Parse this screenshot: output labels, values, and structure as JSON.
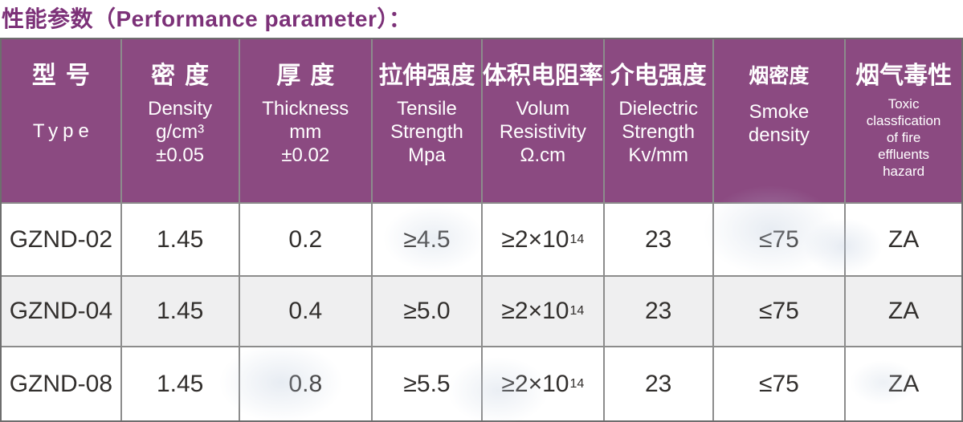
{
  "title": "性能参数（Performance parameter）：",
  "colors": {
    "title_text": "#7c3178",
    "header_background": "#8b4a81",
    "header_text": "#ffffff",
    "grid_line": "#8c8c8c",
    "outer_border": "#6e6e6e",
    "alt_row_background": "#efeff0",
    "cell_text": "#322f2d"
  },
  "table": {
    "columns": [
      {
        "zh": "型号",
        "en": "Type"
      },
      {
        "zh": "密度",
        "en": "Density\ng/cm³\n±0.05"
      },
      {
        "zh": "厚度",
        "en": "Thickness\nmm\n±0.02"
      },
      {
        "zh": "拉伸强度",
        "en": "Tensile\nStrength\nMpa"
      },
      {
        "zh": "体积电阻率",
        "en": "Volum\nResistivity\nΩ.cm"
      },
      {
        "zh": "介电强度",
        "en": "Dielectric\nStrength\nKv/mm"
      },
      {
        "zh": "烟密度",
        "en": "Smoke\ndensity"
      },
      {
        "zh": "烟气毒性",
        "en": "Toxic\nclassfication\nof fire\neffluents\nhazard"
      }
    ],
    "rows": [
      {
        "model": "GZND-02",
        "density": "1.45",
        "thickness": "0.2",
        "tensile": "≥4.5",
        "resistivity_base": "≥2×10",
        "resistivity_exp": "14",
        "dielectric": "23",
        "smoke": "≤75",
        "toxicity": "ZA"
      },
      {
        "model": "GZND-04",
        "density": "1.45",
        "thickness": "0.4",
        "tensile": "≥5.0",
        "resistivity_base": "≥2×10",
        "resistivity_exp": "14",
        "dielectric": "23",
        "smoke": "≤75",
        "toxicity": "ZA"
      },
      {
        "model": "GZND-08",
        "density": "1.45",
        "thickness": "0.8",
        "tensile": "≥5.5",
        "resistivity_base": "≥2×10",
        "resistivity_exp": "14",
        "dielectric": "23",
        "smoke": "≤75",
        "toxicity": "ZA"
      }
    ]
  }
}
